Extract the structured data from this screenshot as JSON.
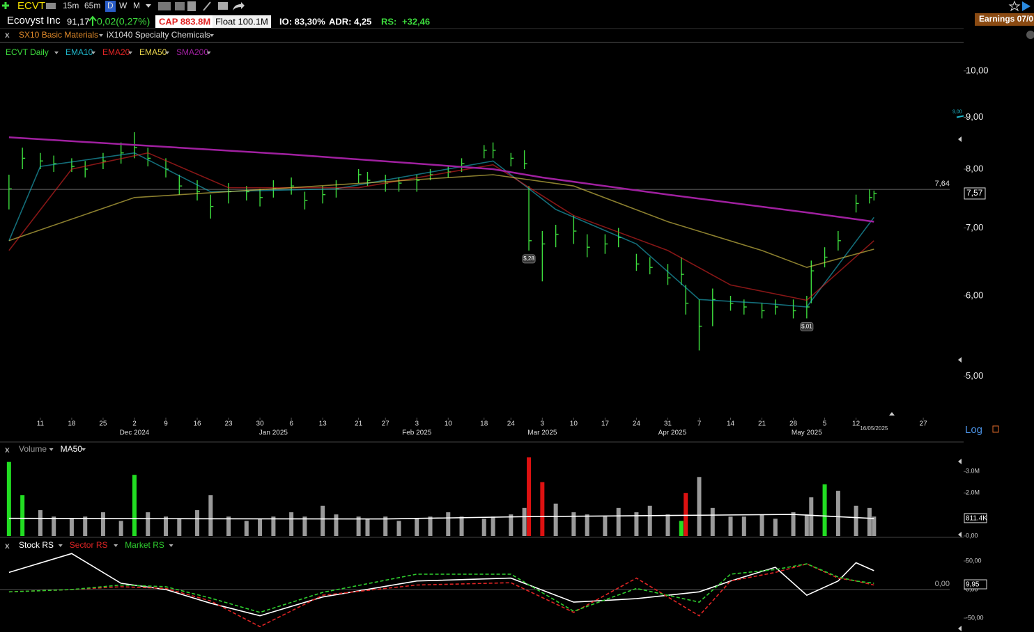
{
  "toolbar": {
    "symbol": "ECVT",
    "intervals": [
      "15m",
      "65m",
      "D",
      "W",
      "M"
    ]
  },
  "header": {
    "name": "Ecovyst Inc",
    "score": "91,17",
    "change": "0,02(0,27%)",
    "cap": "CAP 883.8M",
    "float": "Float 100.1M",
    "io": "IO: 83,30%",
    "adr": "ADR: 4,25",
    "rs_label": "RS:",
    "rs_value": "+32,46",
    "earnings": "Earnings 07/0"
  },
  "sectors": [
    "SX10 Basic Materials",
    "iX1040 Specialty Chemicals"
  ],
  "chart_data": [
    {
      "type": "ohlc",
      "log_scale": true,
      "x": [
        "2024-11-04",
        "2024-11-07",
        "2024-11-11",
        "2024-11-14",
        "2024-11-18",
        "2024-11-21",
        "2024-11-25",
        "2024-11-29",
        "2024-12-02",
        "2024-12-05",
        "2024-12-09",
        "2024-12-12",
        "2024-12-16",
        "2024-12-19",
        "2024-12-23",
        "2024-12-27",
        "2024-12-30",
        "2025-01-02",
        "2025-01-06",
        "2025-01-09",
        "2025-01-13",
        "2025-01-16",
        "2025-01-21",
        "2025-01-23",
        "2025-01-27",
        "2025-01-30",
        "2025-02-03",
        "2025-02-06",
        "2025-02-10",
        "2025-02-13",
        "2025-02-18",
        "2025-02-20",
        "2025-02-24",
        "2025-02-27",
        "2025-02-28",
        "2025-03-03",
        "2025-03-06",
        "2025-03-10",
        "2025-03-13",
        "2025-03-17",
        "2025-03-20",
        "2025-03-24",
        "2025-03-27",
        "2025-03-31",
        "2025-04-03",
        "2025-04-04",
        "2025-04-07",
        "2025-04-10",
        "2025-04-14",
        "2025-04-17",
        "2025-04-21",
        "2025-04-24",
        "2025-04-28",
        "2025-05-01",
        "2025-05-02",
        "2025-05-05",
        "2025-05-08",
        "2025-05-12",
        "2025-05-15",
        "2025-05-16"
      ],
      "series": [
        {
          "name": "ECVT Daily",
          "color": "#3ddc3d",
          "high": [
            7.9,
            8.4,
            8.3,
            8.25,
            8.2,
            8.15,
            8.3,
            8.5,
            8.7,
            8.4,
            8.2,
            7.9,
            7.8,
            7.55,
            7.75,
            7.7,
            7.65,
            7.8,
            7.85,
            7.6,
            7.7,
            7.8,
            8.0,
            7.95,
            7.9,
            7.85,
            7.9,
            8.0,
            8.05,
            8.2,
            8.45,
            8.5,
            8.3,
            8.35,
            7.7,
            6.95,
            7.05,
            7.2,
            6.9,
            6.9,
            7.0,
            6.6,
            6.55,
            6.45,
            6.55,
            6.15,
            5.95,
            6.1,
            6.0,
            5.95,
            5.9,
            5.95,
            5.95,
            6.0,
            6.5,
            6.7,
            6.95,
            7.55,
            7.64,
            7.62
          ],
          "low": [
            7.3,
            8.0,
            8.0,
            7.95,
            7.95,
            7.85,
            8.0,
            8.1,
            8.2,
            8.05,
            7.85,
            7.55,
            7.45,
            7.15,
            7.4,
            7.45,
            7.35,
            7.5,
            7.55,
            7.3,
            7.4,
            7.5,
            7.75,
            7.7,
            7.6,
            7.6,
            7.6,
            7.8,
            7.85,
            7.95,
            8.2,
            8.2,
            8.05,
            8.0,
            6.65,
            6.2,
            6.7,
            6.75,
            6.55,
            6.6,
            6.7,
            6.35,
            6.3,
            6.15,
            6.15,
            5.75,
            5.3,
            5.6,
            5.8,
            5.75,
            5.7,
            5.75,
            5.7,
            5.7,
            5.9,
            6.4,
            6.65,
            7.25,
            7.4,
            7.45
          ],
          "close": [
            7.65,
            8.2,
            8.15,
            8.1,
            8.05,
            8.0,
            8.15,
            8.3,
            8.4,
            8.2,
            8.0,
            7.7,
            7.6,
            7.35,
            7.6,
            7.6,
            7.5,
            7.65,
            7.7,
            7.45,
            7.55,
            7.65,
            7.9,
            7.8,
            7.75,
            7.75,
            7.8,
            7.9,
            7.95,
            8.1,
            8.35,
            8.35,
            8.2,
            8.1,
            6.8,
            6.75,
            6.9,
            6.95,
            6.7,
            6.75,
            6.85,
            6.45,
            6.4,
            6.25,
            6.3,
            5.9,
            5.6,
            5.95,
            5.9,
            5.85,
            5.8,
            5.85,
            5.8,
            5.85,
            6.35,
            6.55,
            6.8,
            7.4,
            7.5,
            7.57
          ]
        },
        {
          "name": "EMA10",
          "color": "#1fb5c9",
          "x": [
            "2024-11-04",
            "2024-11-11",
            "2024-12-02",
            "2024-12-19",
            "2025-01-16",
            "2025-02-20",
            "2025-03-06",
            "2025-03-24",
            "2025-04-07",
            "2025-04-21",
            "2025-05-01",
            "2025-05-16"
          ],
          "values": [
            6.8,
            8.05,
            8.3,
            7.6,
            7.65,
            8.15,
            7.3,
            6.75,
            5.95,
            5.9,
            5.85,
            7.17
          ]
        },
        {
          "name": "EMA20",
          "color": "#e02424",
          "x": [
            "2024-11-04",
            "2024-11-18",
            "2024-12-05",
            "2024-12-23",
            "2025-01-21",
            "2025-02-20",
            "2025-03-10",
            "2025-03-31",
            "2025-04-14",
            "2025-05-01",
            "2025-05-16"
          ],
          "values": [
            6.65,
            8.0,
            8.3,
            7.67,
            7.67,
            8.08,
            7.2,
            6.65,
            6.15,
            5.94,
            6.8
          ]
        },
        {
          "name": "EMA50",
          "color": "#e8d44d",
          "x": [
            "2024-11-04",
            "2024-12-02",
            "2025-01-06",
            "2025-02-20",
            "2025-03-10",
            "2025-03-31",
            "2025-04-21",
            "2025-05-01",
            "2025-05-16"
          ],
          "values": [
            6.8,
            7.5,
            7.67,
            7.9,
            7.7,
            7.1,
            6.65,
            6.4,
            6.67
          ]
        },
        {
          "name": "SMA200",
          "color": "#a020a0",
          "x": [
            "2024-11-04",
            "2025-01-06",
            "2025-02-20",
            "2025-03-03",
            "2025-03-31",
            "2025-05-01",
            "2025-05-16"
          ],
          "values": [
            8.6,
            8.27,
            8.0,
            7.85,
            7.55,
            7.25,
            7.1
          ]
        }
      ],
      "xlim": [
        "2024-11-02",
        "2025-06-05"
      ],
      "ylim": [
        4.55,
        10.65
      ],
      "yticks": [
        {
          "value": 10,
          "label": "10,00"
        },
        {
          "value": 9,
          "label": "9,00"
        },
        {
          "value": 8,
          "label": "8,00"
        },
        {
          "value": 7,
          "label": "7,00"
        },
        {
          "value": 6,
          "label": "6,00"
        },
        {
          "value": 5,
          "label": "5,00"
        }
      ],
      "xticks": [
        {
          "value": "2024-11-11",
          "label": "11"
        },
        {
          "value": "2024-11-18",
          "label": "18"
        },
        {
          "value": "2024-11-25",
          "label": "25"
        },
        {
          "value": "2024-12-02",
          "label": "2"
        },
        {
          "value": "2024-12-09",
          "label": "9"
        },
        {
          "value": "2024-12-16",
          "label": "16"
        },
        {
          "value": "2024-12-23",
          "label": "23"
        },
        {
          "value": "2024-12-30",
          "label": "30"
        },
        {
          "value": "2025-01-06",
          "label": "6"
        },
        {
          "value": "2025-01-13",
          "label": "13"
        },
        {
          "value": "2025-01-21",
          "label": "21"
        },
        {
          "value": "2025-01-27",
          "label": "27"
        },
        {
          "value": "2025-02-03",
          "label": "3"
        },
        {
          "value": "2025-02-10",
          "label": "10"
        },
        {
          "value": "2025-02-18",
          "label": "18"
        },
        {
          "value": "2025-02-24",
          "label": "24"
        },
        {
          "value": "2025-03-03",
          "label": "3"
        },
        {
          "value": "2025-03-10",
          "label": "10"
        },
        {
          "value": "2025-03-17",
          "label": "17"
        },
        {
          "value": "2025-03-24",
          "label": "24"
        },
        {
          "value": "2025-03-31",
          "label": "31"
        },
        {
          "value": "2025-04-07",
          "label": "7"
        },
        {
          "value": "2025-04-14",
          "label": "14"
        },
        {
          "value": "2025-04-21",
          "label": "21"
        },
        {
          "value": "2025-04-28",
          "label": "28"
        },
        {
          "value": "2025-05-05",
          "label": "5"
        },
        {
          "value": "2025-05-12",
          "label": "12"
        },
        {
          "value": "2025-05-27",
          "label": "27"
        }
      ],
      "month_ticks": [
        {
          "value": "2024-12-02",
          "label": "Dec 2024"
        },
        {
          "value": "2025-01-02",
          "label": "Jan 2025"
        },
        {
          "value": "2025-02-03",
          "label": "Feb 2025"
        },
        {
          "value": "2025-03-03",
          "label": "Mar 2025"
        },
        {
          "value": "2025-04-01",
          "label": "Apr 2025"
        },
        {
          "value": "2025-05-01",
          "label": "May 2025"
        }
      ],
      "hline": {
        "value": 7.64,
        "label": "7,64"
      },
      "last_label": "7,57",
      "alert": {
        "value": 9,
        "label": "9,00"
      },
      "annotations": [
        {
          "x": "2025-02-28",
          "label": "$,28"
        },
        {
          "x": "2025-05-01",
          "label": "$,01"
        }
      ],
      "date_label": "16/05/2025",
      "scale_label": "Log"
    },
    {
      "type": "bar",
      "x": [
        "2024-11-04",
        "2024-11-07",
        "2024-11-11",
        "2024-11-14",
        "2024-11-18",
        "2024-11-21",
        "2024-11-25",
        "2024-11-29",
        "2024-12-02",
        "2024-12-05",
        "2024-12-09",
        "2024-12-12",
        "2024-12-16",
        "2024-12-19",
        "2024-12-23",
        "2024-12-27",
        "2024-12-30",
        "2025-01-02",
        "2025-01-06",
        "2025-01-09",
        "2025-01-13",
        "2025-01-16",
        "2025-01-21",
        "2025-01-23",
        "2025-01-27",
        "2025-01-30",
        "2025-02-03",
        "2025-02-06",
        "2025-02-10",
        "2025-02-13",
        "2025-02-18",
        "2025-02-20",
        "2025-02-24",
        "2025-02-27",
        "2025-02-28",
        "2025-03-03",
        "2025-03-06",
        "2025-03-10",
        "2025-03-13",
        "2025-03-17",
        "2025-03-20",
        "2025-03-24",
        "2025-03-27",
        "2025-03-31",
        "2025-04-03",
        "2025-04-04",
        "2025-04-07",
        "2025-04-10",
        "2025-04-14",
        "2025-04-17",
        "2025-04-21",
        "2025-04-24",
        "2025-04-28",
        "2025-05-01",
        "2025-05-02",
        "2025-05-05",
        "2025-05-08",
        "2025-05-12",
        "2025-05-15",
        "2025-05-16"
      ],
      "series": [
        {
          "name": "Volume",
          "color": "#9a9a9a",
          "values": [
            3440000,
            1900000,
            1200000,
            900000,
            800000,
            900000,
            1100000,
            700000,
            2840000,
            1100000,
            900000,
            800000,
            1200000,
            1900000,
            900000,
            700000,
            800000,
            900000,
            1100000,
            900000,
            1400000,
            1000000,
            900000,
            800000,
            900000,
            700000,
            800000,
            900000,
            1100000,
            900000,
            800000,
            900000,
            1000000,
            1300000,
            3650000,
            2500000,
            1500000,
            1100000,
            1000000,
            900000,
            1300000,
            1100000,
            1400000,
            1000000,
            700000,
            2000000,
            2740000,
            1300000,
            900000,
            900000,
            1000000,
            800000,
            1100000,
            1000000,
            1800000,
            2400000,
            2100000,
            1400000,
            1300000,
            900000
          ],
          "colors": [
            "#22dd22",
            "#22dd22",
            "#9a9a9a",
            "#9a9a9a",
            "#9a9a9a",
            "#9a9a9a",
            "#9a9a9a",
            "#9a9a9a",
            "#22dd22",
            "#9a9a9a",
            "#9a9a9a",
            "#9a9a9a",
            "#9a9a9a",
            "#9a9a9a",
            "#9a9a9a",
            "#9a9a9a",
            "#9a9a9a",
            "#9a9a9a",
            "#9a9a9a",
            "#9a9a9a",
            "#9a9a9a",
            "#9a9a9a",
            "#9a9a9a",
            "#9a9a9a",
            "#9a9a9a",
            "#9a9a9a",
            "#9a9a9a",
            "#9a9a9a",
            "#9a9a9a",
            "#9a9a9a",
            "#9a9a9a",
            "#9a9a9a",
            "#9a9a9a",
            "#9a9a9a",
            "#dd1111",
            "#dd1111",
            "#9a9a9a",
            "#9a9a9a",
            "#9a9a9a",
            "#9a9a9a",
            "#9a9a9a",
            "#9a9a9a",
            "#9a9a9a",
            "#9a9a9a",
            "#22dd22",
            "#dd1111",
            "#9a9a9a",
            "#9a9a9a",
            "#9a9a9a",
            "#9a9a9a",
            "#9a9a9a",
            "#9a9a9a",
            "#9a9a9a",
            "#9a9a9a",
            "#9a9a9a",
            "#22dd22",
            "#9a9a9a",
            "#9a9a9a",
            "#9a9a9a",
            "#9a9a9a"
          ]
        },
        {
          "name": "MA50",
          "color": "#ffffff",
          "x": [
            "2024-11-04",
            "2024-12-16",
            "2025-01-27",
            "2025-02-28",
            "2025-03-31",
            "2025-04-28",
            "2025-05-16"
          ],
          "values": [
            820000,
            800000,
            790000,
            900000,
            950000,
            1000000,
            811400
          ]
        }
      ],
      "xlim": [
        "2024-11-02",
        "2025-06-05"
      ],
      "ylim": [
        0,
        3720000
      ],
      "yticks": [
        {
          "value": 3000000,
          "label": "3.0M"
        },
        {
          "value": 2000000,
          "label": "2.0M"
        },
        {
          "value": 0,
          "label": "0,00"
        }
      ],
      "last_label": "811.4K"
    },
    {
      "type": "line",
      "x": [
        "2024-11-04",
        "2024-11-18",
        "2024-11-29",
        "2024-12-09",
        "2024-12-19",
        "2024-12-30",
        "2025-01-13",
        "2025-02-03",
        "2025-02-24",
        "2025-03-10",
        "2025-03-24",
        "2025-04-07",
        "2025-04-14",
        "2025-04-24",
        "2025-05-01",
        "2025-05-08",
        "2025-05-12",
        "2025-05-16"
      ],
      "series": [
        {
          "name": "Stock RS",
          "color": "#ffffff",
          "values": [
            30,
            63,
            11,
            0,
            -24,
            -46,
            -13,
            15,
            20,
            -22,
            -16,
            -4,
            15,
            39,
            -10,
            15,
            47,
            33
          ]
        },
        {
          "name": "Sector RS",
          "color": "#e02424",
          "style": "dashed",
          "values": [
            -4,
            0,
            5,
            2,
            -20,
            -65,
            -10,
            8,
            12,
            -40,
            20,
            -46,
            15,
            30,
            45,
            20,
            15,
            8
          ]
        },
        {
          "name": "Market RS",
          "color": "#2ecc2e",
          "style": "dashed",
          "values": [
            -4,
            0,
            8,
            5,
            -15,
            -40,
            -5,
            27,
            27,
            -38,
            2,
            -22,
            27,
            35,
            45,
            22,
            15,
            11
          ]
        }
      ],
      "xlim": [
        "2024-11-02",
        "2025-06-05"
      ],
      "ylim": [
        -70.7,
        87.8
      ],
      "yticks": [
        {
          "value": 50,
          "label": "50,00"
        },
        {
          "value": 0,
          "label": "0,00"
        },
        {
          "value": -50,
          "label": "-50,00"
        }
      ],
      "baseline": {
        "value": 0,
        "label": "0,00"
      },
      "last_label": "9,95"
    }
  ]
}
